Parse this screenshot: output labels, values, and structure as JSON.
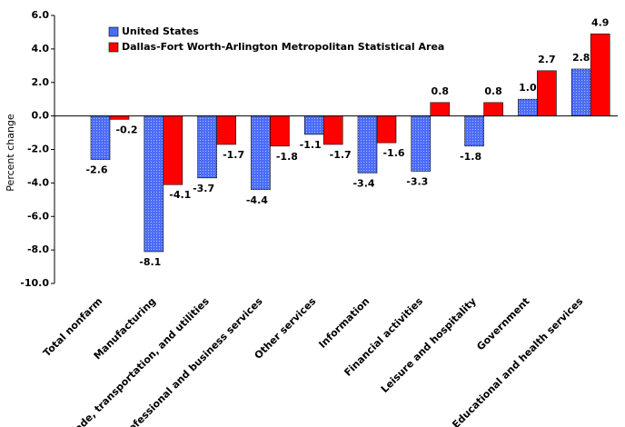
{
  "chart_data": {
    "type": "bar",
    "y_label": "Percent change",
    "categories": [
      "Total nonfarm",
      "Manufacturing",
      "Trade, transportation, and utilities",
      "Professional and business services",
      "Other services",
      "Information",
      "Financial activities",
      "Leisure and hospitality",
      "Government",
      "Educational and health services"
    ],
    "series": [
      {
        "name": "United States",
        "color": "#4a6cf7",
        "values": [
          -2.6,
          -8.1,
          -3.7,
          -4.4,
          -1.1,
          -3.4,
          -3.3,
          -1.8,
          1.0,
          2.8
        ],
        "value_labels": [
          "-2.6",
          "-8.1",
          "-3.7",
          "-4.4",
          "-1.1",
          "-3.4",
          "-3.3",
          "-1.8",
          "1.0",
          "2.8"
        ]
      },
      {
        "name": "Dallas-Fort Worth-Arlington Metropolitan Statistical Area",
        "color": "#ff0000",
        "values": [
          -0.2,
          -4.1,
          -1.7,
          -1.8,
          -1.7,
          -1.6,
          0.8,
          0.8,
          2.7,
          4.9
        ],
        "value_labels": [
          "-0.2",
          "-4.1",
          "-1.7",
          "-1.8",
          "-1.7",
          "-1.6",
          "0.8",
          "0.8",
          "2.7",
          "4.9"
        ]
      }
    ],
    "ylim": [
      -10,
      6
    ],
    "yticks": [
      {
        "value": -10,
        "label": "-10.0"
      },
      {
        "value": -8,
        "label": "-8.0"
      },
      {
        "value": -6,
        "label": "-6.0"
      },
      {
        "value": -4,
        "label": "-4.0"
      },
      {
        "value": -2,
        "label": "-2.0"
      },
      {
        "value": 0,
        "label": "0.0"
      },
      {
        "value": 2,
        "label": "2.0"
      },
      {
        "value": 4,
        "label": "4.0"
      },
      {
        "value": 6,
        "label": "6.0"
      }
    ],
    "grid": false
  }
}
